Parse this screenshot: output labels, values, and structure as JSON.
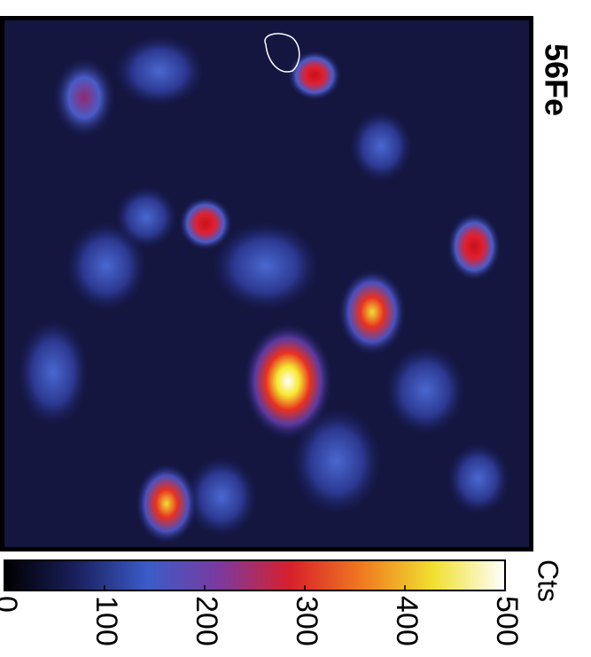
{
  "chart_data": {
    "type": "heatmap",
    "title": "56Fe",
    "colorbar_label": "Cts",
    "clim": [
      0,
      500
    ],
    "colorbar_ticks": [
      0,
      100,
      200,
      300,
      400,
      500
    ],
    "colormap": [
      "#000000",
      "#1a1f5c",
      "#3a5cc8",
      "#7a3aa0",
      "#d8202a",
      "#f07a20",
      "#f0e030",
      "#ffffff"
    ]
  }
}
